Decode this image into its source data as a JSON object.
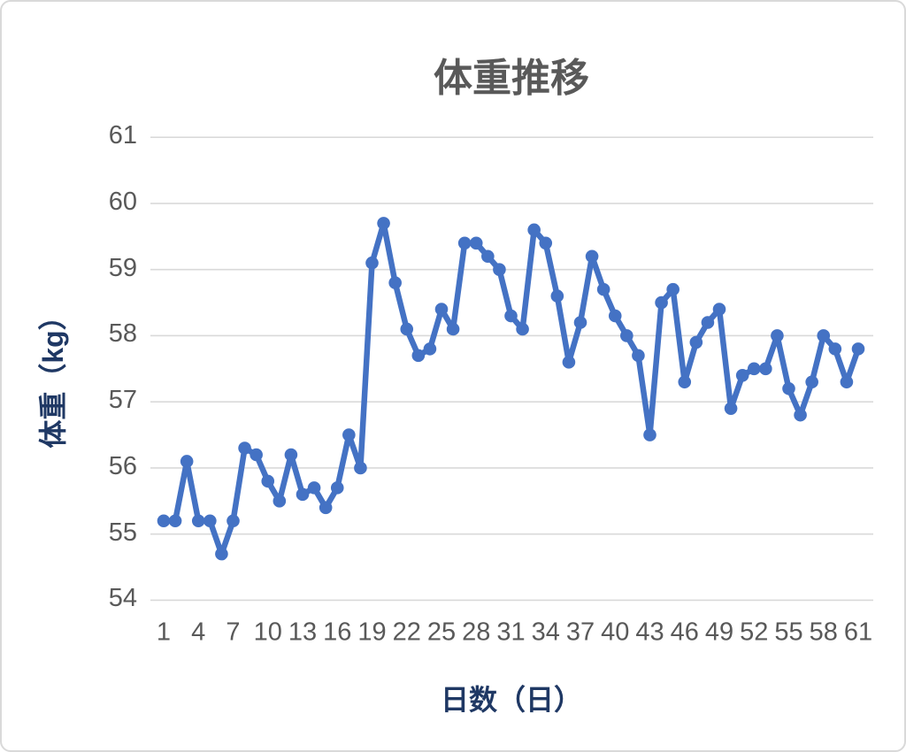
{
  "chart_data": {
    "type": "line",
    "title": "体重推移",
    "xlabel": "日数（日）",
    "ylabel": "体重（kg）",
    "x": [
      1,
      2,
      3,
      4,
      5,
      6,
      7,
      8,
      9,
      10,
      11,
      12,
      13,
      14,
      15,
      16,
      17,
      18,
      19,
      20,
      21,
      22,
      23,
      24,
      25,
      26,
      27,
      28,
      29,
      30,
      31,
      32,
      33,
      34,
      35,
      36,
      37,
      38,
      39,
      40,
      41,
      42,
      43,
      44,
      45,
      46,
      47,
      48,
      49,
      50,
      51,
      52,
      53,
      54,
      55,
      56,
      57,
      58,
      59,
      60,
      61
    ],
    "values": [
      55.2,
      55.2,
      56.1,
      55.2,
      55.2,
      54.7,
      55.2,
      56.3,
      56.2,
      55.8,
      55.5,
      56.2,
      55.6,
      55.7,
      55.4,
      55.7,
      56.5,
      56.0,
      59.1,
      59.7,
      58.8,
      58.1,
      57.7,
      57.8,
      58.4,
      58.1,
      59.4,
      59.4,
      59.2,
      59.0,
      58.3,
      58.1,
      59.6,
      59.4,
      58.6,
      57.6,
      58.2,
      59.2,
      58.7,
      58.3,
      58.0,
      57.7,
      56.5,
      58.5,
      58.7,
      57.3,
      57.9,
      58.2,
      58.4,
      56.9,
      57.4,
      57.5,
      57.5,
      58.0,
      57.2,
      56.8,
      57.3,
      58.0,
      57.8,
      57.3,
      57.8
    ],
    "xlim": [
      1,
      61
    ],
    "ylim": [
      54,
      61
    ],
    "yticks": [
      54,
      55,
      56,
      57,
      58,
      59,
      60,
      61
    ],
    "xticks": [
      1,
      4,
      7,
      10,
      13,
      16,
      19,
      22,
      25,
      28,
      31,
      34,
      37,
      40,
      43,
      46,
      49,
      52,
      55,
      58,
      61
    ],
    "grid": "horizontal",
    "legend": "none",
    "marker": "circle",
    "line_color": "#4472C4",
    "grid_color": "#d9d9d9",
    "title_color": "#595959",
    "tick_color": "#595959",
    "axis_title_color": "#1f3864"
  }
}
